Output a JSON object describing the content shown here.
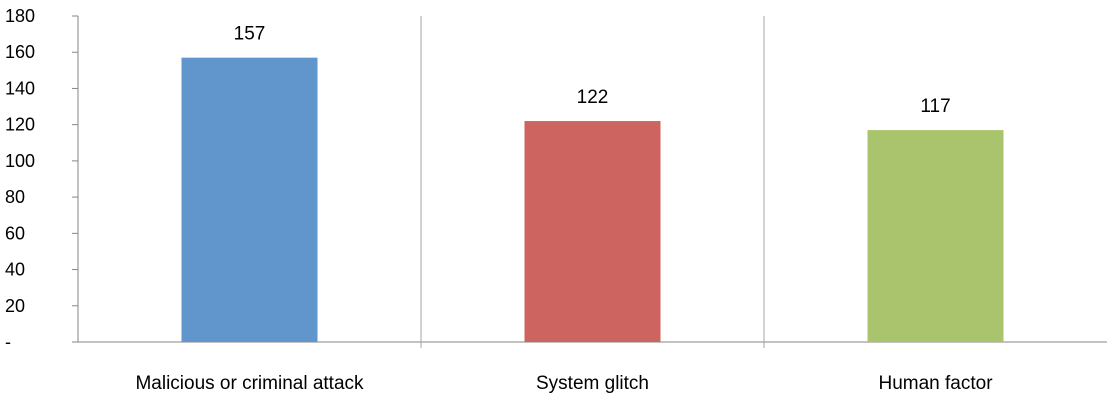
{
  "chart_data": {
    "type": "bar",
    "categories": [
      "Malicious or criminal attack",
      "System glitch",
      "Human factor"
    ],
    "values": [
      157,
      122,
      117
    ],
    "colors": [
      "#6096cb",
      "#cd6460",
      "#a9c46c"
    ],
    "data_labels": [
      "157",
      "122",
      "117"
    ],
    "title": "",
    "xlabel": "",
    "ylabel": "",
    "ylim": [
      0,
      180
    ],
    "y_ticks": [
      0,
      20,
      40,
      60,
      80,
      100,
      120,
      140,
      160,
      180
    ],
    "y_tick_labels": [
      "-",
      "20",
      "40",
      "60",
      "80",
      "100",
      "120",
      "140",
      "160",
      "180"
    ],
    "grid": "vertical separators between categories",
    "legend": "none"
  }
}
